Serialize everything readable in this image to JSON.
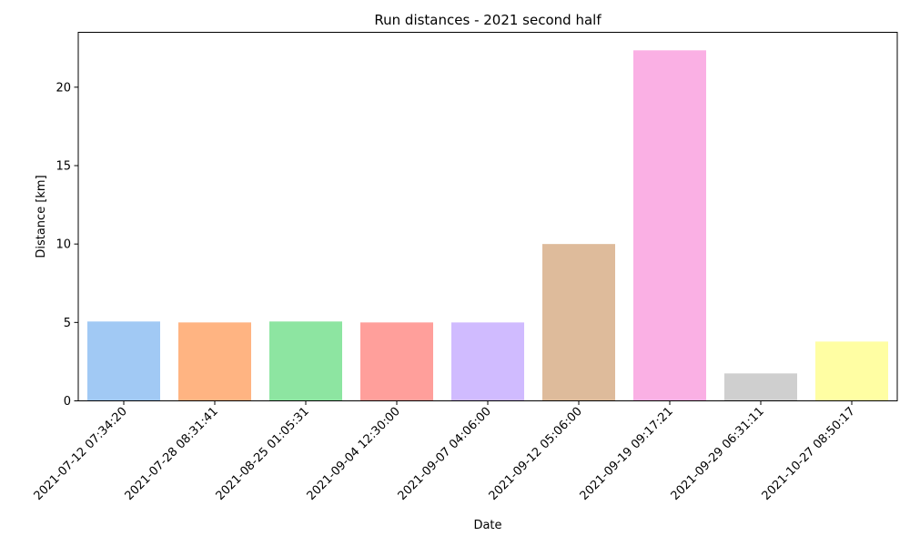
{
  "chart_data": {
    "type": "bar",
    "title": "Run distances - 2021 second half",
    "xlabel": "Date",
    "ylabel": "Distance [km]",
    "ylim": [
      0,
      23.5
    ],
    "yticks": [
      0,
      5,
      10,
      15,
      20
    ],
    "grid": false,
    "categories": [
      "2021-07-12 07:34:20",
      "2021-07-28 08:31:41",
      "2021-08-25 01:05:31",
      "2021-09-04 12:30:00",
      "2021-09-07 04:06:00",
      "2021-09-12 05:06:00",
      "2021-09-19 09:17:21",
      "2021-09-29 06:31:11",
      "2021-10-27 08:50:17"
    ],
    "values": [
      5.06,
      5.0,
      5.06,
      5.0,
      5.0,
      10.0,
      22.35,
      1.75,
      3.78
    ],
    "colors": [
      "#a1c9f4",
      "#ffb482",
      "#8de5a1",
      "#ff9f9b",
      "#d0bbff",
      "#debb9b",
      "#fab0e4",
      "#cfcfcf",
      "#fffea3"
    ]
  }
}
